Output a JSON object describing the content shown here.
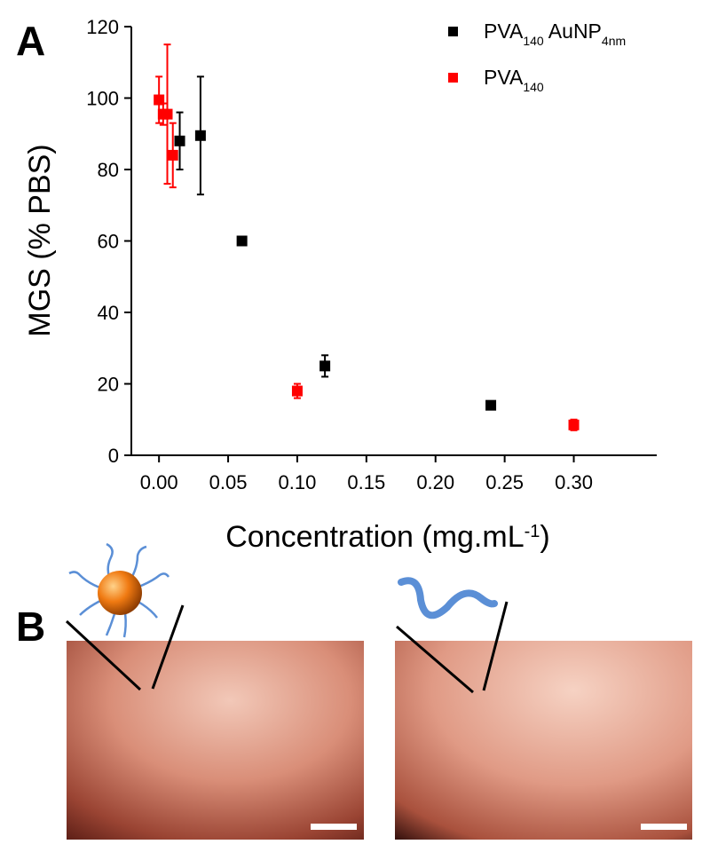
{
  "panel_labels": [
    "A",
    "B"
  ],
  "chart_data": {
    "type": "scatter",
    "xlabel": [
      "Concentration (mg.mL",
      "-1",
      ")"
    ],
    "ylabel": "MGS (% PBS)",
    "xlim": [
      -0.02,
      0.36
    ],
    "ylim": [
      0,
      120
    ],
    "xticks": [
      {
        "value": 0,
        "label": "0.00"
      },
      {
        "value": 0.05,
        "label": "0.05"
      },
      {
        "value": 0.1,
        "label": "0.10"
      },
      {
        "value": 0.15,
        "label": "0.15"
      },
      {
        "value": 0.2,
        "label": "0.20"
      },
      {
        "value": 0.25,
        "label": "0.25"
      },
      {
        "value": 0.3,
        "label": "0.30"
      }
    ],
    "yticks": [
      0,
      20,
      40,
      60,
      80,
      100,
      120
    ],
    "legend": "upper right",
    "series": [
      {
        "name": [
          "PVA",
          "140",
          " AuNP",
          "4nm"
        ],
        "color": "#000000",
        "x": [
          0.015,
          0.03,
          0.06,
          0.12,
          0.24
        ],
        "values": [
          88,
          89.5,
          60,
          25,
          14
        ],
        "errors": [
          8,
          16.5,
          1,
          3,
          1
        ]
      },
      {
        "name": [
          "PVA",
          "140"
        ],
        "color": "#ff0000",
        "x": [
          0,
          0.003,
          0.006,
          0.01,
          0.1,
          0.3
        ],
        "values": [
          99.5,
          95.5,
          95.5,
          84,
          18,
          8.5
        ],
        "errors": [
          6.5,
          3,
          19.5,
          9,
          2,
          1.5
        ]
      }
    ]
  }
}
